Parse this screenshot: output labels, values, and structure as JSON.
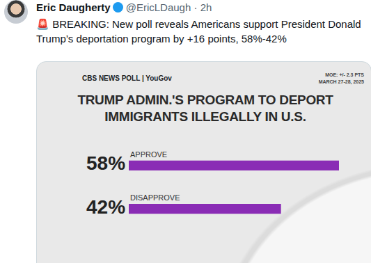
{
  "tweet": {
    "name": "Eric Daugherty",
    "handle": "@EricLDaugh",
    "time": "· 2h",
    "text": "🚨 BREAKING: New poll reveals Americans support President Donald Trump’s deportation program by +16 points, 58%-42%"
  },
  "chart_data": {
    "type": "bar",
    "orientation": "horizontal",
    "source": "CBS NEWS POLL | YouGov",
    "moe": "MOE: +/- 2.3 PTS",
    "dates": "MARCH 27-28, 2025",
    "title": "TRUMP ADMIN.'S PROGRAM TO DEPORT IMMIGRANTS ILLEGALLY IN U.S.",
    "categories": [
      "APPROVE",
      "DISAPPROVE"
    ],
    "values": [
      58,
      42
    ],
    "value_labels": [
      "58%",
      "42%"
    ],
    "data_labels": true,
    "color": "#8a2cb5",
    "xlim": [
      0,
      58
    ],
    "tick_labels": false,
    "grid": false
  }
}
